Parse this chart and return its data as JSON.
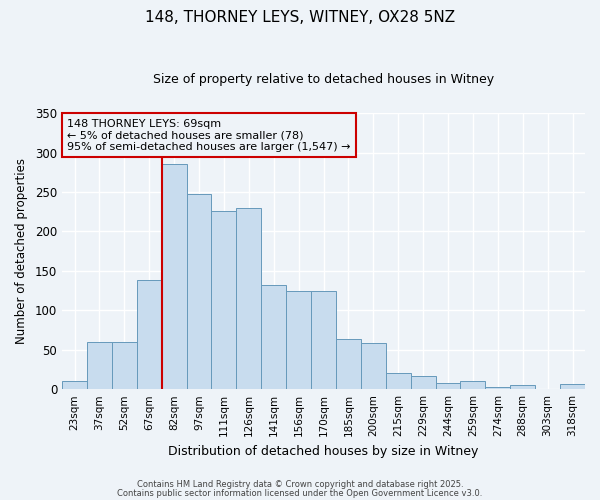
{
  "title": "148, THORNEY LEYS, WITNEY, OX28 5NZ",
  "subtitle": "Size of property relative to detached houses in Witney",
  "xlabel": "Distribution of detached houses by size in Witney",
  "ylabel": "Number of detached properties",
  "bar_color": "#c8dcee",
  "bar_edge_color": "#6699bb",
  "categories": [
    "23sqm",
    "37sqm",
    "52sqm",
    "67sqm",
    "82sqm",
    "97sqm",
    "111sqm",
    "126sqm",
    "141sqm",
    "156sqm",
    "170sqm",
    "185sqm",
    "200sqm",
    "215sqm",
    "229sqm",
    "244sqm",
    "259sqm",
    "274sqm",
    "288sqm",
    "303sqm",
    "318sqm"
  ],
  "values": [
    10,
    60,
    60,
    138,
    285,
    247,
    226,
    230,
    132,
    125,
    125,
    63,
    59,
    20,
    17,
    8,
    10,
    3,
    5,
    0,
    6
  ],
  "ylim": [
    0,
    350
  ],
  "yticks": [
    0,
    50,
    100,
    150,
    200,
    250,
    300,
    350
  ],
  "vline_x": 3.5,
  "vline_color": "#cc0000",
  "annotation_title": "148 THORNEY LEYS: 69sqm",
  "annotation_line2": "← 5% of detached houses are smaller (78)",
  "annotation_line3": "95% of semi-detached houses are larger (1,547) →",
  "annotation_box_edge": "#cc0000",
  "footer1": "Contains HM Land Registry data © Crown copyright and database right 2025.",
  "footer2": "Contains public sector information licensed under the Open Government Licence v3.0.",
  "background_color": "#eef3f8",
  "grid_color": "#ffffff",
  "title_fontsize": 11,
  "subtitle_fontsize": 9
}
